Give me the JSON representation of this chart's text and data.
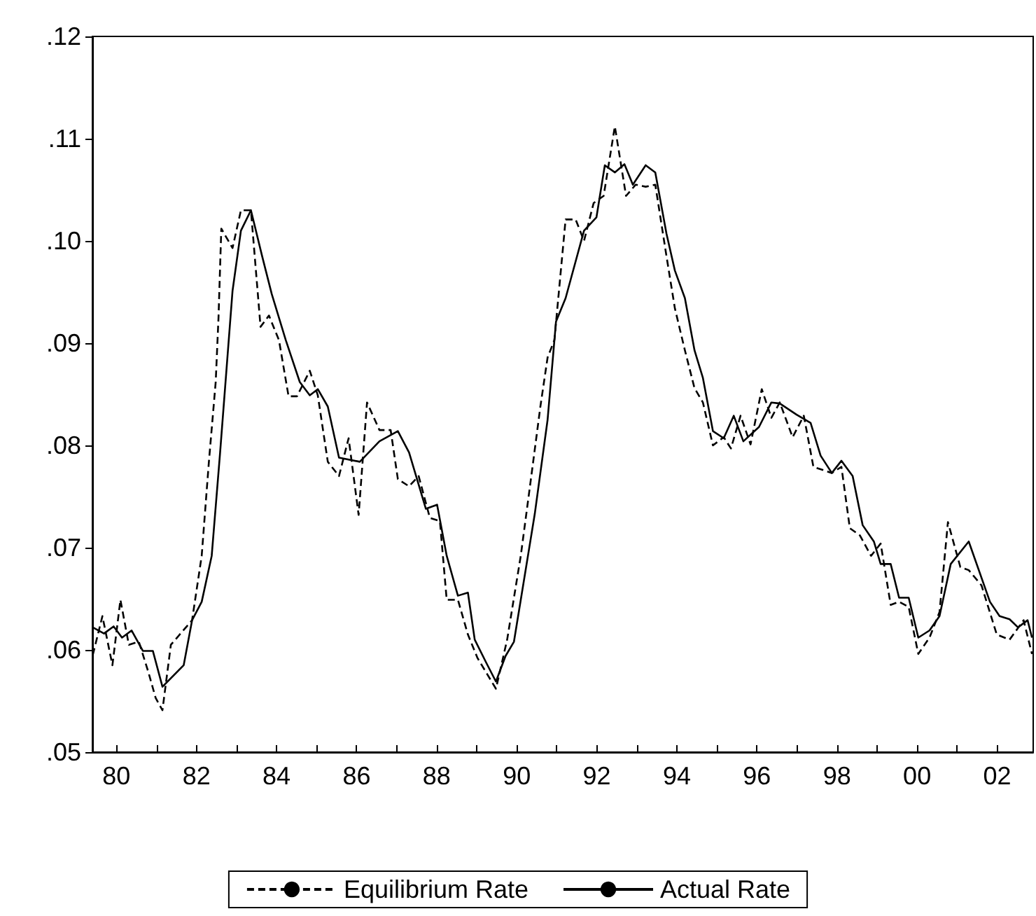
{
  "chart_data": {
    "type": "line",
    "xlim": [
      1979.4,
      2002.9
    ],
    "xticks": [
      {
        "value": 1980,
        "label": "80"
      },
      {
        "value": 1981,
        "label": null
      },
      {
        "value": 1982,
        "label": "82"
      },
      {
        "value": 1983,
        "label": null
      },
      {
        "value": 1984,
        "label": "84"
      },
      {
        "value": 1985,
        "label": null
      },
      {
        "value": 1986,
        "label": "86"
      },
      {
        "value": 1987,
        "label": null
      },
      {
        "value": 1988,
        "label": "88"
      },
      {
        "value": 1989,
        "label": null
      },
      {
        "value": 1990,
        "label": "90"
      },
      {
        "value": 1991,
        "label": null
      },
      {
        "value": 1992,
        "label": "92"
      },
      {
        "value": 1993,
        "label": null
      },
      {
        "value": 1994,
        "label": "94"
      },
      {
        "value": 1995,
        "label": null
      },
      {
        "value": 1996,
        "label": "96"
      },
      {
        "value": 1997,
        "label": null
      },
      {
        "value": 1998,
        "label": "98"
      },
      {
        "value": 1999,
        "label": null
      },
      {
        "value": 2000,
        "label": "00"
      },
      {
        "value": 2001,
        "label": null
      },
      {
        "value": 2002,
        "label": "02"
      }
    ],
    "ylim": [
      0.05,
      0.12
    ],
    "yticks": [
      {
        "value": 0.05,
        "label": ".05"
      },
      {
        "value": 0.06,
        "label": ".06"
      },
      {
        "value": 0.07,
        "label": ".07"
      },
      {
        "value": 0.08,
        "label": ".08"
      },
      {
        "value": 0.09,
        "label": ".09"
      },
      {
        "value": 0.1,
        "label": ".10"
      },
      {
        "value": 0.11,
        "label": ".11"
      },
      {
        "value": 0.12,
        "label": ".12"
      }
    ],
    "legend": "bottom",
    "marker": "none",
    "series": [
      {
        "name": "Equilibrium Rate",
        "color": "#000000",
        "line_style": "dashed",
        "x": [
          1979.41,
          1979.65,
          1979.9,
          1980.1,
          1980.31,
          1980.56,
          1980.8,
          1980.98,
          1981.15,
          1981.36,
          1981.89,
          1982.13,
          1982.31,
          1982.48,
          1982.55,
          1982.62,
          1982.9,
          1983.11,
          1983.36,
          1983.6,
          1983.81,
          1984.06,
          1984.3,
          1984.51,
          1984.83,
          1985.03,
          1985.28,
          1985.56,
          1985.8,
          1986.05,
          1986.26,
          1986.57,
          1986.85,
          1987.03,
          1987.31,
          1987.55,
          1987.83,
          1988.08,
          1988.25,
          1988.53,
          1988.78,
          1989.02,
          1989.48,
          1989.76,
          1990.1,
          1990.35,
          1990.59,
          1990.77,
          1990.94,
          1991.22,
          1991.47,
          1991.68,
          1991.92,
          1992.17,
          1992.45,
          1992.73,
          1992.97,
          1993.22,
          1993.46,
          1993.74,
          1993.95,
          1994.2,
          1994.44,
          1994.65,
          1994.9,
          1995.17,
          1995.35,
          1995.59,
          1995.84,
          1996.12,
          1996.36,
          1996.57,
          1996.89,
          1997.17,
          1997.41,
          1997.87,
          1998.11,
          1998.32,
          1998.57,
          1998.85,
          1999.09,
          1999.34,
          1999.55,
          1999.79,
          2000.03,
          2000.31,
          2000.56,
          2000.77,
          2001.08,
          2001.29,
          2001.61,
          2001.99,
          2002.31,
          2002.66,
          2002.87
        ],
        "values": [
          0.0595,
          0.0633,
          0.0585,
          0.0649,
          0.0605,
          0.0608,
          0.0578,
          0.0553,
          0.0541,
          0.0605,
          0.0629,
          0.0692,
          0.0784,
          0.0862,
          0.0925,
          0.1012,
          0.0993,
          0.103,
          0.103,
          0.0916,
          0.0927,
          0.0903,
          0.0848,
          0.0848,
          0.0873,
          0.0849,
          0.0784,
          0.077,
          0.0807,
          0.0732,
          0.0842,
          0.0815,
          0.0815,
          0.0767,
          0.076,
          0.077,
          0.0729,
          0.0726,
          0.0649,
          0.0649,
          0.0615,
          0.0592,
          0.0562,
          0.061,
          0.0692,
          0.0766,
          0.0838,
          0.0886,
          0.0903,
          0.1021,
          0.1021,
          0.1,
          0.1037,
          0.1044,
          0.1112,
          0.1044,
          0.1055,
          0.1053,
          0.1055,
          0.0985,
          0.0934,
          0.0893,
          0.0856,
          0.0842,
          0.08,
          0.0808,
          0.0797,
          0.0829,
          0.0801,
          0.0855,
          0.0827,
          0.0842,
          0.0808,
          0.0829,
          0.0779,
          0.0773,
          0.0779,
          0.0719,
          0.0712,
          0.0692,
          0.0704,
          0.0644,
          0.0647,
          0.0642,
          0.0596,
          0.0612,
          0.0637,
          0.0725,
          0.0681,
          0.0678,
          0.0663,
          0.0615,
          0.061,
          0.0629,
          0.0596
        ]
      },
      {
        "name": "Actual Rate",
        "color": "#000000",
        "line_style": "solid",
        "x": [
          1979.41,
          1979.69,
          1979.93,
          1980.14,
          1980.38,
          1980.66,
          1980.91,
          1981.15,
          1981.68,
          1981.89,
          1982.13,
          1982.38,
          1982.59,
          1982.9,
          1983.11,
          1983.36,
          1983.64,
          1983.88,
          1984.23,
          1984.58,
          1984.83,
          1985.03,
          1985.28,
          1985.56,
          1986.08,
          1986.57,
          1987.03,
          1987.31,
          1987.73,
          1988.01,
          1988.25,
          1988.53,
          1988.78,
          1988.95,
          1989.23,
          1989.48,
          1989.72,
          1989.93,
          1990.45,
          1990.77,
          1990.98,
          1991.22,
          1991.68,
          1991.99,
          1992.2,
          1992.45,
          1992.69,
          1992.9,
          1993.22,
          1993.46,
          1993.74,
          1993.95,
          1994.2,
          1994.44,
          1994.65,
          1994.9,
          1995.17,
          1995.42,
          1995.66,
          1996.05,
          1996.36,
          1996.57,
          1996.99,
          1997.34,
          1997.59,
          1997.87,
          1998.11,
          1998.39,
          1998.64,
          1998.92,
          1999.09,
          1999.34,
          1999.55,
          1999.79,
          2000.03,
          2000.31,
          2000.56,
          2000.84,
          2001.29,
          2001.82,
          2002.06,
          2002.31,
          2002.52,
          2002.76,
          2002.87
        ],
        "values": [
          0.0622,
          0.0616,
          0.0623,
          0.0612,
          0.0619,
          0.0599,
          0.0599,
          0.0564,
          0.0585,
          0.0629,
          0.0647,
          0.0692,
          0.0793,
          0.0951,
          0.101,
          0.103,
          0.0985,
          0.0948,
          0.0903,
          0.0862,
          0.0849,
          0.0855,
          0.0838,
          0.0788,
          0.0784,
          0.0804,
          0.0814,
          0.0793,
          0.0738,
          0.0742,
          0.0692,
          0.0653,
          0.0656,
          0.061,
          0.0588,
          0.0569,
          0.0594,
          0.0608,
          0.0733,
          0.0825,
          0.0921,
          0.0944,
          0.101,
          0.1023,
          0.1074,
          0.1067,
          0.1075,
          0.1055,
          0.1074,
          0.1067,
          0.1007,
          0.0971,
          0.0944,
          0.0893,
          0.0866,
          0.0814,
          0.0807,
          0.0829,
          0.0804,
          0.0818,
          0.0842,
          0.0841,
          0.083,
          0.0822,
          0.079,
          0.0773,
          0.0785,
          0.077,
          0.0722,
          0.0706,
          0.0684,
          0.0684,
          0.0651,
          0.0651,
          0.0612,
          0.0619,
          0.0633,
          0.0684,
          0.0706,
          0.0647,
          0.0633,
          0.063,
          0.0622,
          0.0629,
          0.0612
        ]
      }
    ]
  }
}
